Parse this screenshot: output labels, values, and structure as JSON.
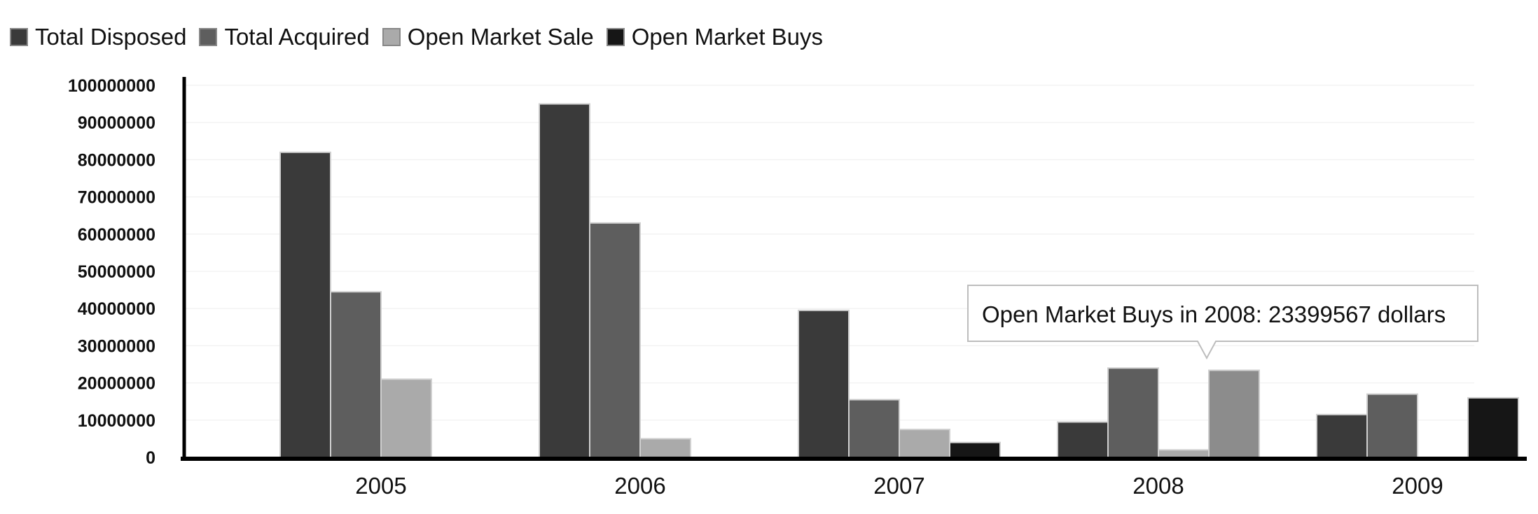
{
  "chart_data": {
    "type": "bar",
    "categories": [
      "2005",
      "2006",
      "2007",
      "2008",
      "2009"
    ],
    "series": [
      {
        "name": "Total Disposed",
        "color": "#3a3a3a",
        "values": [
          82000000,
          95000000,
          39500000,
          9500000,
          11500000
        ]
      },
      {
        "name": "Total Acquired",
        "color": "#5e5e5e",
        "values": [
          44500000,
          63000000,
          15500000,
          24000000,
          17000000
        ]
      },
      {
        "name": "Open Market Sale",
        "color": "#aaaaaa",
        "values": [
          21000000,
          5000000,
          7500000,
          2000000,
          0
        ]
      },
      {
        "name": "Open Market Buys",
        "color": "#161616",
        "values": [
          0,
          0,
          4000000,
          23399567,
          16000000
        ]
      }
    ],
    "y_ticks": [
      "100000000",
      "90000000",
      "80000000",
      "70000000",
      "60000000",
      "50000000",
      "40000000",
      "30000000",
      "20000000",
      "10000000",
      "0"
    ],
    "ylim": [
      0,
      100000000
    ],
    "grid": true,
    "legend_position": "top-left",
    "tooltip": {
      "text": "Open Market Buys in 2008: 23399567 dollars",
      "category": "2008",
      "series": "Open Market Buys",
      "highlight_color": "#8c8c8c"
    }
  }
}
